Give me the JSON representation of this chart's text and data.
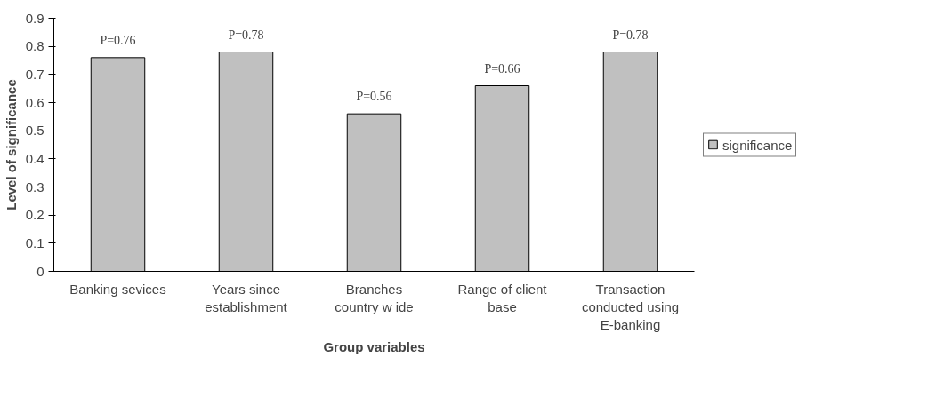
{
  "chart_data": {
    "type": "bar",
    "xlabel": "Group variables",
    "ylabel": "Level of significance",
    "categories": [
      "Banking sevices",
      "Years since establishment",
      "Branches country w ide",
      "Range of client base",
      "Transaction conducted using E-banking"
    ],
    "series": [
      {
        "name": "significance",
        "color": "#c0c0c0",
        "values": [
          0.76,
          0.78,
          0.56,
          0.66,
          0.78
        ],
        "value_labels": [
          "P=0.76",
          "P=0.78",
          "P=0.56",
          "P=0.66",
          "P=0.78"
        ]
      }
    ],
    "ylim": [
      0,
      0.9
    ],
    "yticks": [
      0,
      0.1,
      0.2,
      0.3,
      0.4,
      0.5,
      0.6,
      0.7,
      0.8,
      0.9
    ],
    "grid": false,
    "legend": "right"
  }
}
